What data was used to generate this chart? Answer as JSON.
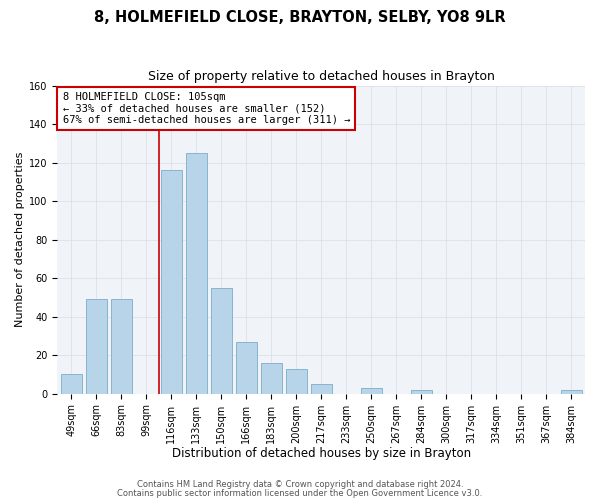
{
  "title": "8, HOLMEFIELD CLOSE, BRAYTON, SELBY, YO8 9LR",
  "subtitle": "Size of property relative to detached houses in Brayton",
  "xlabel": "Distribution of detached houses by size in Brayton",
  "ylabel": "Number of detached properties",
  "bar_labels": [
    "49sqm",
    "66sqm",
    "83sqm",
    "99sqm",
    "116sqm",
    "133sqm",
    "150sqm",
    "166sqm",
    "183sqm",
    "200sqm",
    "217sqm",
    "233sqm",
    "250sqm",
    "267sqm",
    "284sqm",
    "300sqm",
    "317sqm",
    "334sqm",
    "351sqm",
    "367sqm",
    "384sqm"
  ],
  "bar_values": [
    10,
    49,
    49,
    0,
    116,
    125,
    55,
    27,
    16,
    13,
    5,
    0,
    3,
    0,
    2,
    0,
    0,
    0,
    0,
    0,
    2
  ],
  "bar_color": "#b8d4e8",
  "bar_edge_color": "#88b4d0",
  "vline_color": "#cc0000",
  "annotation_text": "8 HOLMEFIELD CLOSE: 105sqm\n← 33% of detached houses are smaller (152)\n67% of semi-detached houses are larger (311) →",
  "annotation_box_color": "white",
  "annotation_box_edge": "#cc0000",
  "footer_line1": "Contains HM Land Registry data © Crown copyright and database right 2024.",
  "footer_line2": "Contains public sector information licensed under the Open Government Licence v3.0.",
  "ylim": [
    0,
    160
  ],
  "title_fontsize": 10.5,
  "subtitle_fontsize": 9,
  "xlabel_fontsize": 8.5,
  "ylabel_fontsize": 8,
  "tick_fontsize": 7,
  "footer_fontsize": 6,
  "annotation_fontsize": 7.5,
  "bg_color": "#ffffff",
  "plot_bg_color": "#f0f4f8",
  "grid_color": "#d8dde8"
}
